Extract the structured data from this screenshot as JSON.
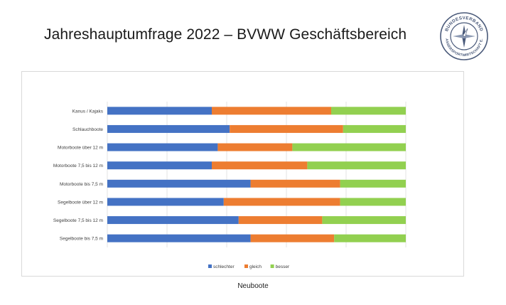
{
  "page": {
    "title": "Jahreshauptumfrage 2022 – BVWW Geschäftsbereich",
    "caption": "Neuboote"
  },
  "logo": {
    "text_top": "BUNDESVERBAND",
    "text_bottom": "WASSERSPORTWIRTSCHAFT E.V.",
    "icon": "compass-star-icon",
    "color": "#4a5a7a"
  },
  "chart_data": {
    "type": "bar",
    "orientation": "horizontal",
    "stacked": true,
    "percent_stacked": true,
    "categories": [
      "Kanus / Kajaks",
      "Schlauchboote",
      "Motorboote über 12 m",
      "Motorboote 7,5 bis 12 m",
      "Motorboote bis 7,5 m",
      "Segelboote über 12 m",
      "Segelboote 7,5 bis 12 m",
      "Segelboote bis 7,5 m"
    ],
    "series": [
      {
        "name": "schlechter",
        "color": "#4472c4",
        "values": [
          35,
          41,
          37,
          35,
          48,
          39,
          44,
          48
        ]
      },
      {
        "name": "gleich",
        "color": "#ed7d31",
        "values": [
          40,
          38,
          25,
          32,
          30,
          39,
          28,
          28
        ]
      },
      {
        "name": "besser",
        "color": "#92d050",
        "values": [
          25,
          21,
          38,
          33,
          22,
          22,
          28,
          24
        ]
      }
    ],
    "xlim": [
      0,
      100
    ],
    "grid": true,
    "legend": "bottom",
    "title": "",
    "xlabel": "",
    "ylabel": ""
  }
}
